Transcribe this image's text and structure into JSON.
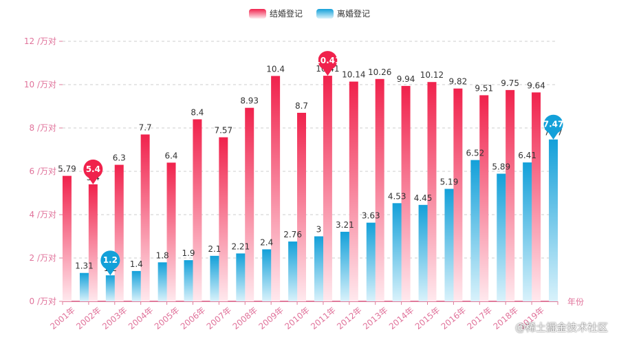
{
  "legend": {
    "marriage_label": "结婚登记",
    "divorce_label": "离婚登记"
  },
  "watermark": "@稀土掘金技术社区",
  "colors": {
    "marriage_top": "#f0224c",
    "marriage_bottom": "#ffe9ee",
    "divorce_top": "#13a0d9",
    "divorce_bottom": "#d9f2fb",
    "axis": "#e07a9a",
    "axis_text": "#e0729a",
    "grid": "#cccccc",
    "label": "#333333"
  },
  "chart_data": {
    "type": "bar",
    "categories": [
      "2001年",
      "2002年",
      "2003年",
      "2004年",
      "2005年",
      "2006年",
      "2007年",
      "2008年",
      "2009年",
      "2010年",
      "2011年",
      "2012年",
      "2013年",
      "2014年",
      "2015年",
      "2016年",
      "2017年",
      "2018年",
      "2019年"
    ],
    "series": [
      {
        "name": "结婚登记",
        "values": [
          5.79,
          5.4,
          6.3,
          7.7,
          6.4,
          8.4,
          7.57,
          8.93,
          10.4,
          8.7,
          10.41,
          10.14,
          10.26,
          9.94,
          10.12,
          9.82,
          9.51,
          9.75,
          9.64
        ]
      },
      {
        "name": "离婚登记",
        "values": [
          1.31,
          1.2,
          1.4,
          1.8,
          1.9,
          2.1,
          2.21,
          2.4,
          2.76,
          3,
          3.21,
          3.63,
          4.53,
          4.45,
          5.19,
          6.52,
          5.89,
          6.41,
          7.47
        ]
      }
    ],
    "ylim": [
      0,
      12
    ],
    "yticks": [
      0,
      2,
      4,
      6,
      8,
      10,
      12
    ],
    "ytick_suffix": " /万对",
    "xlabel": "年份",
    "ylabel": "",
    "grid": true,
    "legend_position": "top-center",
    "markers": [
      {
        "series": 0,
        "type": "min",
        "index": 1,
        "label": "5.4"
      },
      {
        "series": 0,
        "type": "max",
        "index": 10,
        "label": "10.41"
      },
      {
        "series": 1,
        "type": "min",
        "index": 1,
        "label": "1.2"
      },
      {
        "series": 1,
        "type": "max",
        "index": 18,
        "label": "7.47"
      }
    ]
  }
}
